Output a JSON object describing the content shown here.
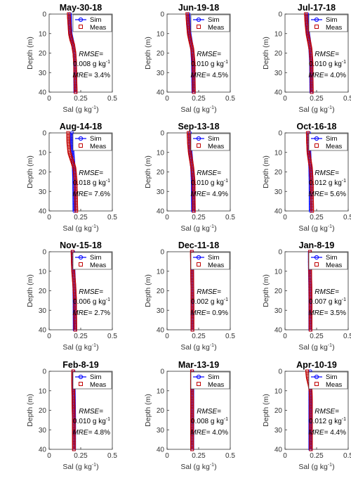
{
  "colors": {
    "sim": "#0000ff",
    "meas": "#c00000",
    "axis": "#333333"
  },
  "chart_data": [
    {
      "type": "line",
      "title": "May-30-18",
      "xlabel": "Sal (g kg-1)",
      "ylabel": "Depth (m)",
      "xlim": [
        0,
        0.5
      ],
      "ylim": [
        0,
        40
      ],
      "xticks": [
        "0",
        "0.25",
        "0.5"
      ],
      "yticks": [
        "0",
        "10",
        "20",
        "30",
        "40"
      ],
      "y_reversed": true,
      "legend": {
        "position": "top-right",
        "entries": [
          "Sim",
          "Meas"
        ]
      },
      "series": [
        {
          "name": "Sim",
          "x": [
            0.165,
            0.166,
            0.17,
            0.18,
            0.19,
            0.2,
            0.205,
            0.207
          ],
          "y": [
            0,
            5,
            10,
            13,
            16,
            20,
            25,
            40
          ]
        },
        {
          "name": "Meas",
          "x": [
            0.155,
            0.16,
            0.165,
            0.175,
            0.19,
            0.2,
            0.205,
            0.21
          ],
          "y": [
            0,
            5,
            10,
            13,
            16,
            20,
            25,
            40
          ]
        }
      ],
      "stats": {
        "rmse_label": "RMSE=",
        "rmse": "0.008 g kg-1",
        "mre_label": "MRE=",
        "mre": "3.4%"
      }
    },
    {
      "type": "line",
      "title": "Jun-19-18",
      "xlabel": "Sal (g kg-1)",
      "ylabel": "Depth (m)",
      "xlim": [
        0,
        0.5
      ],
      "ylim": [
        0,
        40
      ],
      "xticks": [
        "0",
        "0.25",
        "0.5"
      ],
      "yticks": [
        "0",
        "10",
        "20",
        "30",
        "40"
      ],
      "y_reversed": true,
      "legend": {
        "position": "top-right",
        "entries": [
          "Sim",
          "Meas"
        ]
      },
      "series": [
        {
          "name": "Sim",
          "x": [
            0.17,
            0.172,
            0.178,
            0.188,
            0.198,
            0.205,
            0.208
          ],
          "y": [
            0,
            5,
            10,
            14,
            18,
            25,
            40
          ]
        },
        {
          "name": "Meas",
          "x": [
            0.16,
            0.165,
            0.172,
            0.185,
            0.2,
            0.21,
            0.212
          ],
          "y": [
            0,
            5,
            10,
            14,
            18,
            25,
            40
          ]
        }
      ],
      "stats": {
        "rmse_label": "RMSE=",
        "rmse": "0.010 g kg-1",
        "mre_label": "MRE=",
        "mre": "4.5%"
      }
    },
    {
      "type": "line",
      "title": "Jul-17-18",
      "xlabel": "Sal (g kg-1)",
      "ylabel": "Depth (m)",
      "xlim": [
        0,
        0.5
      ],
      "ylim": [
        0,
        40
      ],
      "xticks": [
        "0",
        "0.25",
        "0.5"
      ],
      "yticks": [
        "0",
        "10",
        "20",
        "30",
        "40"
      ],
      "y_reversed": true,
      "legend": {
        "position": "top-right",
        "entries": [
          "Sim",
          "Meas"
        ]
      },
      "series": [
        {
          "name": "Sim",
          "x": [
            0.175,
            0.177,
            0.183,
            0.192,
            0.2,
            0.206,
            0.208
          ],
          "y": [
            0,
            5,
            10,
            14,
            18,
            25,
            40
          ]
        },
        {
          "name": "Meas",
          "x": [
            0.165,
            0.17,
            0.178,
            0.19,
            0.202,
            0.21,
            0.212
          ],
          "y": [
            0,
            5,
            10,
            14,
            18,
            25,
            40
          ]
        }
      ],
      "stats": {
        "rmse_label": "RMSE=",
        "rmse": "0.010 g kg-1",
        "mre_label": "MRE=",
        "mre": "4.0%"
      }
    },
    {
      "type": "line",
      "title": "Aug-14-18",
      "xlabel": "Sal (g kg-1)",
      "ylabel": "Depth (m)",
      "xlim": [
        0,
        0.5
      ],
      "ylim": [
        0,
        40
      ],
      "xticks": [
        "0",
        "0.25",
        "0.5"
      ],
      "yticks": [
        "0",
        "10",
        "20",
        "30",
        "40"
      ],
      "y_reversed": true,
      "legend": {
        "position": "top-right",
        "entries": [
          "Sim",
          "Meas"
        ]
      },
      "series": [
        {
          "name": "Sim",
          "x": [
            0.18,
            0.181,
            0.185,
            0.19,
            0.195,
            0.198,
            0.2
          ],
          "y": [
            0,
            5,
            10,
            14,
            18,
            25,
            40
          ]
        },
        {
          "name": "Meas",
          "x": [
            0.15,
            0.152,
            0.16,
            0.18,
            0.2,
            0.21,
            0.215
          ],
          "y": [
            0,
            5,
            10,
            14,
            18,
            25,
            40
          ]
        }
      ],
      "stats": {
        "rmse_label": "RMSE=",
        "rmse": "0.018 g kg-1",
        "mre_label": "MRE=",
        "mre": "7.6%"
      }
    },
    {
      "type": "line",
      "title": "Sep-13-18",
      "xlabel": "Sal (g kg-1)",
      "ylabel": "Depth (m)",
      "xlim": [
        0,
        0.5
      ],
      "ylim": [
        0,
        40
      ],
      "xticks": [
        "0",
        "0.25",
        "0.5"
      ],
      "yticks": [
        "0",
        "10",
        "20",
        "30",
        "40"
      ],
      "y_reversed": true,
      "legend": {
        "position": "top-right",
        "entries": [
          "Sim",
          "Meas"
        ]
      },
      "series": [
        {
          "name": "Sim",
          "x": [
            0.18,
            0.182,
            0.186,
            0.192,
            0.198,
            0.203,
            0.205
          ],
          "y": [
            0,
            5,
            10,
            14,
            18,
            25,
            40
          ]
        },
        {
          "name": "Meas",
          "x": [
            0.17,
            0.173,
            0.18,
            0.19,
            0.2,
            0.21,
            0.212
          ],
          "y": [
            0,
            5,
            10,
            14,
            18,
            25,
            40
          ]
        }
      ],
      "stats": {
        "rmse_label": "RMSE=",
        "rmse": "0.010 g kg-1",
        "mre_label": "MRE=",
        "mre": "4.9%"
      }
    },
    {
      "type": "line",
      "title": "Oct-16-18",
      "xlabel": "Sal (g kg-1)",
      "ylabel": "Depth (m)",
      "xlim": [
        0,
        0.5
      ],
      "ylim": [
        0,
        40
      ],
      "xticks": [
        "0",
        "0.25",
        "0.5"
      ],
      "yticks": [
        "0",
        "10",
        "20",
        "30",
        "40"
      ],
      "y_reversed": true,
      "legend": {
        "position": "top-right",
        "entries": [
          "Sim",
          "Meas"
        ]
      },
      "series": [
        {
          "name": "Sim",
          "x": [
            0.19,
            0.191,
            0.193,
            0.196,
            0.2,
            0.202,
            0.203
          ],
          "y": [
            0,
            5,
            10,
            14,
            18,
            25,
            40
          ]
        },
        {
          "name": "Meas",
          "x": [
            0.18,
            0.182,
            0.186,
            0.195,
            0.205,
            0.212,
            0.215
          ],
          "y": [
            0,
            5,
            10,
            14,
            18,
            25,
            40
          ]
        }
      ],
      "stats": {
        "rmse_label": "RMSE=",
        "rmse": "0.012 g kg-1",
        "mre_label": "MRE=",
        "mre": "5.6%"
      }
    },
    {
      "type": "line",
      "title": "Nov-15-18",
      "xlabel": "Sal (g kg-1)",
      "ylabel": "Depth (m)",
      "xlim": [
        0,
        0.5
      ],
      "ylim": [
        0,
        40
      ],
      "xticks": [
        "0",
        "0.25",
        "0.5"
      ],
      "yticks": [
        "0",
        "10",
        "20",
        "30",
        "40"
      ],
      "y_reversed": true,
      "legend": {
        "position": "top-right",
        "entries": [
          "Sim",
          "Meas"
        ]
      },
      "series": [
        {
          "name": "Sim",
          "x": [
            0.19,
            0.191,
            0.193,
            0.196,
            0.199,
            0.201,
            0.202
          ],
          "y": [
            0,
            5,
            10,
            14,
            18,
            25,
            40
          ]
        },
        {
          "name": "Meas",
          "x": [
            0.185,
            0.187,
            0.19,
            0.195,
            0.2,
            0.205,
            0.207
          ],
          "y": [
            0,
            5,
            10,
            14,
            18,
            25,
            40
          ]
        }
      ],
      "stats": {
        "rmse_label": "RMSE=",
        "rmse": "0.006 g kg-1",
        "mre_label": "MRE=",
        "mre": "2.7%"
      }
    },
    {
      "type": "line",
      "title": "Dec-11-18",
      "xlabel": "Sal (g kg-1)",
      "ylabel": "Depth (m)",
      "xlim": [
        0,
        0.5
      ],
      "ylim": [
        0,
        40
      ],
      "xticks": [
        "0",
        "0.25",
        "0.5"
      ],
      "yticks": [
        "0",
        "10",
        "20",
        "30",
        "40"
      ],
      "y_reversed": true,
      "legend": {
        "position": "top-right",
        "entries": [
          "Sim",
          "Meas"
        ]
      },
      "series": [
        {
          "name": "Sim",
          "x": [
            0.198,
            0.198,
            0.199,
            0.199,
            0.2,
            0.2,
            0.2
          ],
          "y": [
            0,
            5,
            10,
            14,
            18,
            25,
            40
          ]
        },
        {
          "name": "Meas",
          "x": [
            0.196,
            0.197,
            0.198,
            0.199,
            0.2,
            0.201,
            0.201
          ],
          "y": [
            0,
            5,
            10,
            14,
            18,
            25,
            40
          ]
        }
      ],
      "stats": {
        "rmse_label": "RMSE=",
        "rmse": "0.002 g kg-1",
        "mre_label": "MRE=",
        "mre": "0.9%"
      }
    },
    {
      "type": "line",
      "title": "Jan-8-19",
      "xlabel": "Sal (g kg-1)",
      "ylabel": "Depth (m)",
      "xlim": [
        0,
        0.5
      ],
      "ylim": [
        0,
        40
      ],
      "xticks": [
        "0",
        "0.25",
        "0.5"
      ],
      "yticks": [
        "0",
        "10",
        "20",
        "30",
        "40"
      ],
      "y_reversed": true,
      "legend": {
        "position": "top-right",
        "entries": [
          "Sim",
          "Meas"
        ]
      },
      "series": [
        {
          "name": "Sim",
          "x": [
            0.196,
            0.196,
            0.197,
            0.198,
            0.199,
            0.2,
            0.2
          ],
          "y": [
            0,
            5,
            10,
            14,
            18,
            25,
            40
          ]
        },
        {
          "name": "Meas",
          "x": [
            0.198,
            0.198,
            0.199,
            0.2,
            0.201,
            0.202,
            0.202
          ],
          "y": [
            0,
            5,
            10,
            14,
            18,
            25,
            40
          ]
        }
      ],
      "stats": {
        "rmse_label": "RMSE=",
        "rmse": "0.007 g kg-1",
        "mre_label": "MRE=",
        "mre": "3.5%"
      }
    },
    {
      "type": "line",
      "title": "Feb-8-19",
      "xlabel": "Sal (g kg-1)",
      "ylabel": "Depth (m)",
      "xlim": [
        0,
        0.5
      ],
      "ylim": [
        0,
        40
      ],
      "xticks": [
        "0",
        "0.25",
        "0.5"
      ],
      "yticks": [
        "0",
        "10",
        "20",
        "30",
        "40"
      ],
      "y_reversed": true,
      "legend": {
        "position": "top-right",
        "entries": [
          "Sim",
          "Meas"
        ]
      },
      "series": [
        {
          "name": "Sim",
          "x": [
            0.193,
            0.194,
            0.195,
            0.196,
            0.197,
            0.198,
            0.198
          ],
          "y": [
            0,
            5,
            10,
            14,
            18,
            25,
            40
          ]
        },
        {
          "name": "Meas",
          "x": [
            0.19,
            0.19,
            0.191,
            0.192,
            0.193,
            0.195,
            0.196
          ],
          "y": [
            0,
            5,
            10,
            14,
            18,
            25,
            40
          ]
        }
      ],
      "stats": {
        "rmse_label": "RMSE=",
        "rmse": "0.010 g kg-1",
        "mre_label": "MRE=",
        "mre": "4.8%"
      }
    },
    {
      "type": "line",
      "title": "Mar-13-19",
      "xlabel": "Sal (g kg-1)",
      "ylabel": "Depth (m)",
      "xlim": [
        0,
        0.5
      ],
      "ylim": [
        0,
        40
      ],
      "xticks": [
        "0",
        "0.25",
        "0.5"
      ],
      "yticks": [
        "0",
        "10",
        "20",
        "30",
        "40"
      ],
      "y_reversed": true,
      "legend": {
        "position": "top-right",
        "entries": [
          "Sim",
          "Meas"
        ]
      },
      "series": [
        {
          "name": "Sim",
          "x": [
            0.2,
            0.2,
            0.2,
            0.2,
            0.2,
            0.2,
            0.2
          ],
          "y": [
            0,
            5,
            10,
            14,
            18,
            25,
            40
          ]
        },
        {
          "name": "Meas",
          "x": [
            0.197,
            0.197,
            0.197,
            0.198,
            0.198,
            0.198,
            0.198
          ],
          "y": [
            0,
            5,
            10,
            14,
            18,
            25,
            40
          ]
        }
      ],
      "stats": {
        "rmse_label": "RMSE=",
        "rmse": "0.008 g kg-1",
        "mre_label": "MRE=",
        "mre": "4.0%"
      }
    },
    {
      "type": "line",
      "title": "Apr-10-19",
      "xlabel": "Sal (g kg-1)",
      "ylabel": "Depth (m)",
      "xlim": [
        0,
        0.5
      ],
      "ylim": [
        0,
        40
      ],
      "xticks": [
        "0",
        "0.25",
        "0.5"
      ],
      "yticks": [
        "0",
        "10",
        "20",
        "30",
        "40"
      ],
      "y_reversed": true,
      "legend": {
        "position": "top-right",
        "entries": [
          "Sim",
          "Meas"
        ]
      },
      "series": [
        {
          "name": "Sim",
          "x": [
            0.2,
            0.2,
            0.2,
            0.2,
            0.2,
            0.2,
            0.2
          ],
          "y": [
            0,
            5,
            10,
            14,
            18,
            25,
            40
          ]
        },
        {
          "name": "Meas",
          "x": [
            0.175,
            0.18,
            0.195,
            0.203,
            0.205,
            0.205,
            0.205
          ],
          "y": [
            0,
            3,
            7,
            10,
            15,
            25,
            40
          ]
        }
      ],
      "stats": {
        "rmse_label": "RMSE=",
        "rmse": "0.012 g kg-1",
        "mre_label": "MRE=",
        "mre": "4.4%"
      }
    }
  ]
}
